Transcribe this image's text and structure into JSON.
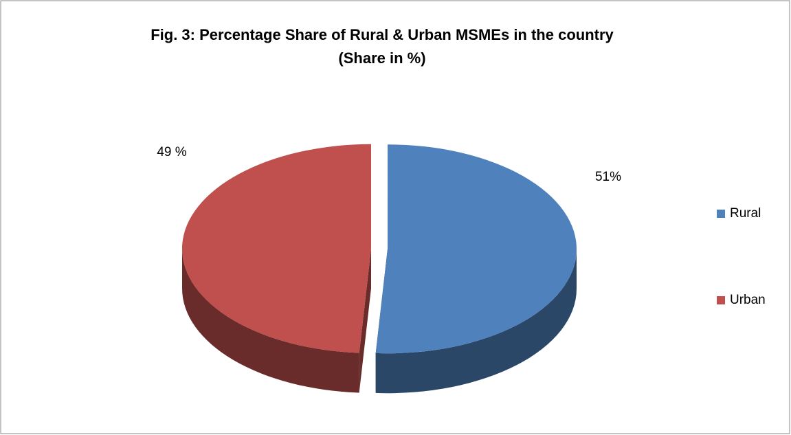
{
  "chart_data": {
    "type": "pie",
    "title": "Fig. 3: Percentage Share of Rural & Urban MSMEs in the country",
    "subtitle": "(Share in %)",
    "categories": [
      "Rural",
      "Urban"
    ],
    "values": [
      51,
      49
    ],
    "value_labels": [
      "51%",
      "49 %"
    ],
    "colors": [
      "#4f81bd",
      "#c0504d"
    ],
    "legend": "right"
  }
}
